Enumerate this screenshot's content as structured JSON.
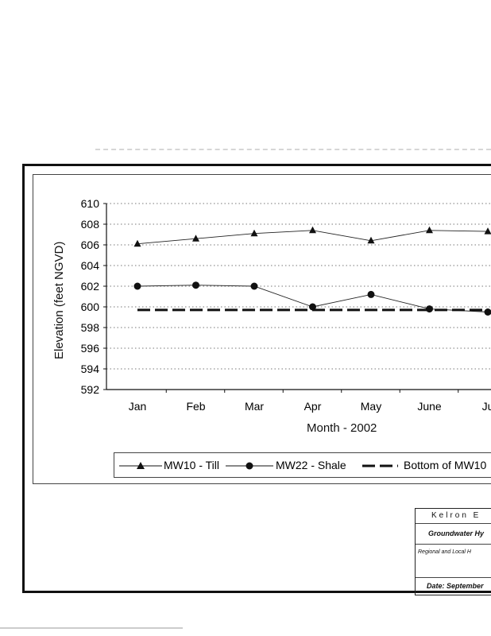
{
  "chart_data": {
    "type": "line",
    "title": "",
    "xlabel": "Month - 2002",
    "ylabel": "Elevation (feet NGVD)",
    "ylim": [
      592,
      610
    ],
    "yticks": [
      592,
      594,
      596,
      598,
      600,
      602,
      604,
      606,
      608,
      610
    ],
    "categories": [
      "Jan",
      "Feb",
      "Mar",
      "Apr",
      "May",
      "June",
      "Jul"
    ],
    "categories_display": [
      "Jan",
      "Feb",
      "Mar",
      "Apr",
      "May",
      "June",
      "Ju"
    ],
    "grid": "horizontal dotted",
    "legend_position": "bottom",
    "series": [
      {
        "name": "MW10 - Till",
        "marker": "triangle",
        "style": "solid",
        "values": [
          606.1,
          606.6,
          607.1,
          607.4,
          606.4,
          607.4,
          607.3
        ]
      },
      {
        "name": "MW22 - Shale",
        "marker": "circle",
        "style": "solid",
        "values": [
          602.0,
          602.1,
          602.0,
          600.0,
          601.2,
          599.8,
          599.5
        ]
      },
      {
        "name": "Bottom of MW10",
        "marker": "none",
        "style": "dashed",
        "values": [
          599.7,
          599.7,
          599.7,
          599.7,
          599.7,
          599.7,
          599.7
        ]
      }
    ]
  },
  "legend": {
    "mw10": "MW10 - Till",
    "mw22": "MW22 - Shale",
    "bottom": "Bottom of MW10"
  },
  "title_block": {
    "company": "Kelron E",
    "title": "Groundwater Hy",
    "subtitle": "Regional and Local H",
    "date": "Date: September"
  }
}
